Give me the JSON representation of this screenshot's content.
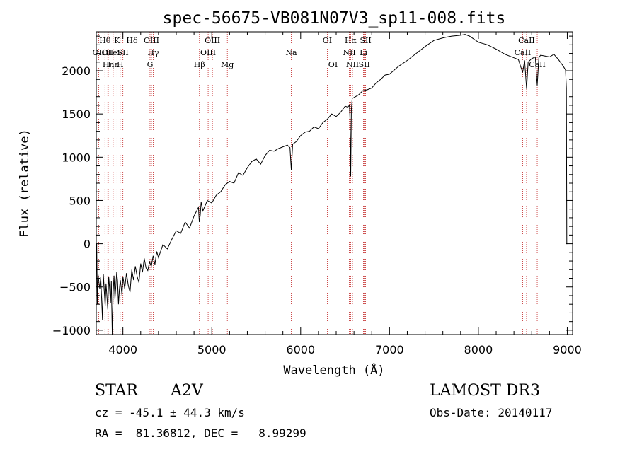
{
  "chart_data": {
    "type": "line",
    "title": "spec-56675-VB081N07V3_sp11-008.fits",
    "xlabel": "Wavelength (Å)",
    "ylabel": "Flux (relative)",
    "xlim": [
      3700,
      9060
    ],
    "ylim": [
      -1050,
      2450
    ],
    "x_ticks": [
      4000,
      5000,
      6000,
      7000,
      8000,
      9000
    ],
    "y_ticks": [
      -1000,
      -500,
      0,
      500,
      1000,
      1500,
      2000
    ],
    "grid": false,
    "series": [
      {
        "name": "flux",
        "x": [
          3700,
          3705,
          3712,
          3720,
          3730,
          3740,
          3750,
          3760,
          3770,
          3780,
          3790,
          3800,
          3810,
          3820,
          3830,
          3840,
          3850,
          3860,
          3870,
          3880,
          3890,
          3900,
          3910,
          3920,
          3930,
          3940,
          3950,
          3960,
          3970,
          3980,
          3990,
          4000,
          4020,
          4040,
          4060,
          4080,
          4100,
          4120,
          4140,
          4160,
          4180,
          4200,
          4220,
          4240,
          4260,
          4280,
          4300,
          4320,
          4340,
          4360,
          4380,
          4400,
          4450,
          4500,
          4550,
          4600,
          4650,
          4700,
          4750,
          4800,
          4850,
          4860,
          4870,
          4880,
          4900,
          4950,
          5000,
          5050,
          5100,
          5150,
          5200,
          5250,
          5300,
          5350,
          5400,
          5450,
          5500,
          5550,
          5600,
          5650,
          5700,
          5750,
          5800,
          5850,
          5880,
          5895,
          5910,
          5950,
          6000,
          6050,
          6100,
          6150,
          6200,
          6250,
          6300,
          6350,
          6400,
          6450,
          6500,
          6530,
          6550,
          6555,
          6563,
          6570,
          6580,
          6600,
          6650,
          6700,
          6750,
          6800,
          6850,
          6900,
          6950,
          7000,
          7100,
          7200,
          7300,
          7400,
          7500,
          7600,
          7700,
          7800,
          7850,
          7900,
          8000,
          8100,
          8200,
          8300,
          8400,
          8450,
          8498,
          8520,
          8542,
          8560,
          8600,
          8640,
          8662,
          8680,
          8700,
          8750,
          8800,
          8850,
          8900,
          8950,
          8980,
          8990,
          8995,
          9000
        ],
        "y": [
          -300,
          0,
          -700,
          -350,
          -450,
          -520,
          -380,
          -620,
          -880,
          -350,
          -540,
          -720,
          -460,
          -610,
          -760,
          -380,
          -510,
          -690,
          -430,
          -1060,
          -560,
          -370,
          -640,
          -500,
          -330,
          -430,
          -700,
          -540,
          -420,
          -500,
          -600,
          -380,
          -520,
          -340,
          -480,
          -560,
          -300,
          -420,
          -260,
          -380,
          -450,
          -230,
          -330,
          -170,
          -280,
          -310,
          -210,
          -260,
          -140,
          -240,
          -90,
          -160,
          -10,
          -60,
          50,
          150,
          120,
          250,
          180,
          320,
          420,
          250,
          330,
          480,
          380,
          500,
          470,
          560,
          600,
          680,
          720,
          700,
          820,
          790,
          880,
          950,
          980,
          920,
          1020,
          1080,
          1070,
          1100,
          1120,
          1140,
          1110,
          850,
          1150,
          1180,
          1250,
          1290,
          1300,
          1350,
          1330,
          1400,
          1440,
          1500,
          1470,
          1520,
          1590,
          1580,
          1600,
          1430,
          780,
          1550,
          1680,
          1690,
          1720,
          1770,
          1780,
          1800,
          1860,
          1900,
          1950,
          1960,
          2050,
          2120,
          2200,
          2280,
          2350,
          2380,
          2400,
          2410,
          2420,
          2400,
          2330,
          2300,
          2250,
          2190,
          2150,
          2130,
          1980,
          2120,
          1790,
          2100,
          2140,
          2160,
          1830,
          2150,
          2180,
          2170,
          2160,
          2190,
          2130,
          2060,
          2010,
          1800,
          0,
          0
        ]
      }
    ],
    "line_markers": [
      {
        "name": "OII",
        "wl": 3727,
        "row": 2
      },
      {
        "name": "Hθ",
        "wl": 3798,
        "row": 1
      },
      {
        "name": "OII",
        "wl": 3830,
        "row": 2
      },
      {
        "name": "Hη",
        "wl": 3835,
        "row": 3
      },
      {
        "name": "Hε",
        "wl": 3889,
        "row": 3
      },
      {
        "name": "HeI",
        "wl": 3889,
        "row": 2
      },
      {
        "name": "K",
        "wl": 3934,
        "row": 1
      },
      {
        "name": "H",
        "wl": 3969,
        "row": 3
      },
      {
        "name": "SII",
        "wl": 4000,
        "row": 2
      },
      {
        "name": "Hδ",
        "wl": 4102,
        "row": 1
      },
      {
        "name": "OIII",
        "wl": 4321,
        "row": 1
      },
      {
        "name": "G",
        "wl": 4305,
        "row": 3
      },
      {
        "name": "Hγ",
        "wl": 4341,
        "row": 2
      },
      {
        "name": "Hβ",
        "wl": 4861,
        "row": 3
      },
      {
        "name": "OIII",
        "wl": 4959,
        "row": 2
      },
      {
        "name": "OIII",
        "wl": 5007,
        "row": 1
      },
      {
        "name": "Mg",
        "wl": 5175,
        "row": 3
      },
      {
        "name": "Na",
        "wl": 5894,
        "row": 2
      },
      {
        "name": "OI",
        "wl": 6300,
        "row": 1
      },
      {
        "name": "OI",
        "wl": 6364,
        "row": 3
      },
      {
        "name": "NII",
        "wl": 6548,
        "row": 2
      },
      {
        "name": "Hα",
        "wl": 6563,
        "row": 1
      },
      {
        "name": "NII",
        "wl": 6583,
        "row": 3
      },
      {
        "name": "Li",
        "wl": 6707,
        "row": 2
      },
      {
        "name": "SII",
        "wl": 6716,
        "row": 3
      },
      {
        "name": "SII",
        "wl": 6731,
        "row": 1
      },
      {
        "name": "CaII",
        "wl": 8498,
        "row": 2
      },
      {
        "name": "CaII",
        "wl": 8542,
        "row": 1
      },
      {
        "name": "CaII",
        "wl": 8662,
        "row": 3
      }
    ]
  },
  "info": {
    "object_class": "STAR",
    "subclass": "A2V",
    "survey": "LAMOST DR3",
    "redshift": "cz = -45.1 ± 44.3 km/s",
    "obs_date": "Obs-Date: 20140117",
    "coords": "RA =  81.36812, DEC =   8.99299"
  },
  "colors": {
    "line": "#000000",
    "marker": "#c02020",
    "background": "#ffffff"
  }
}
